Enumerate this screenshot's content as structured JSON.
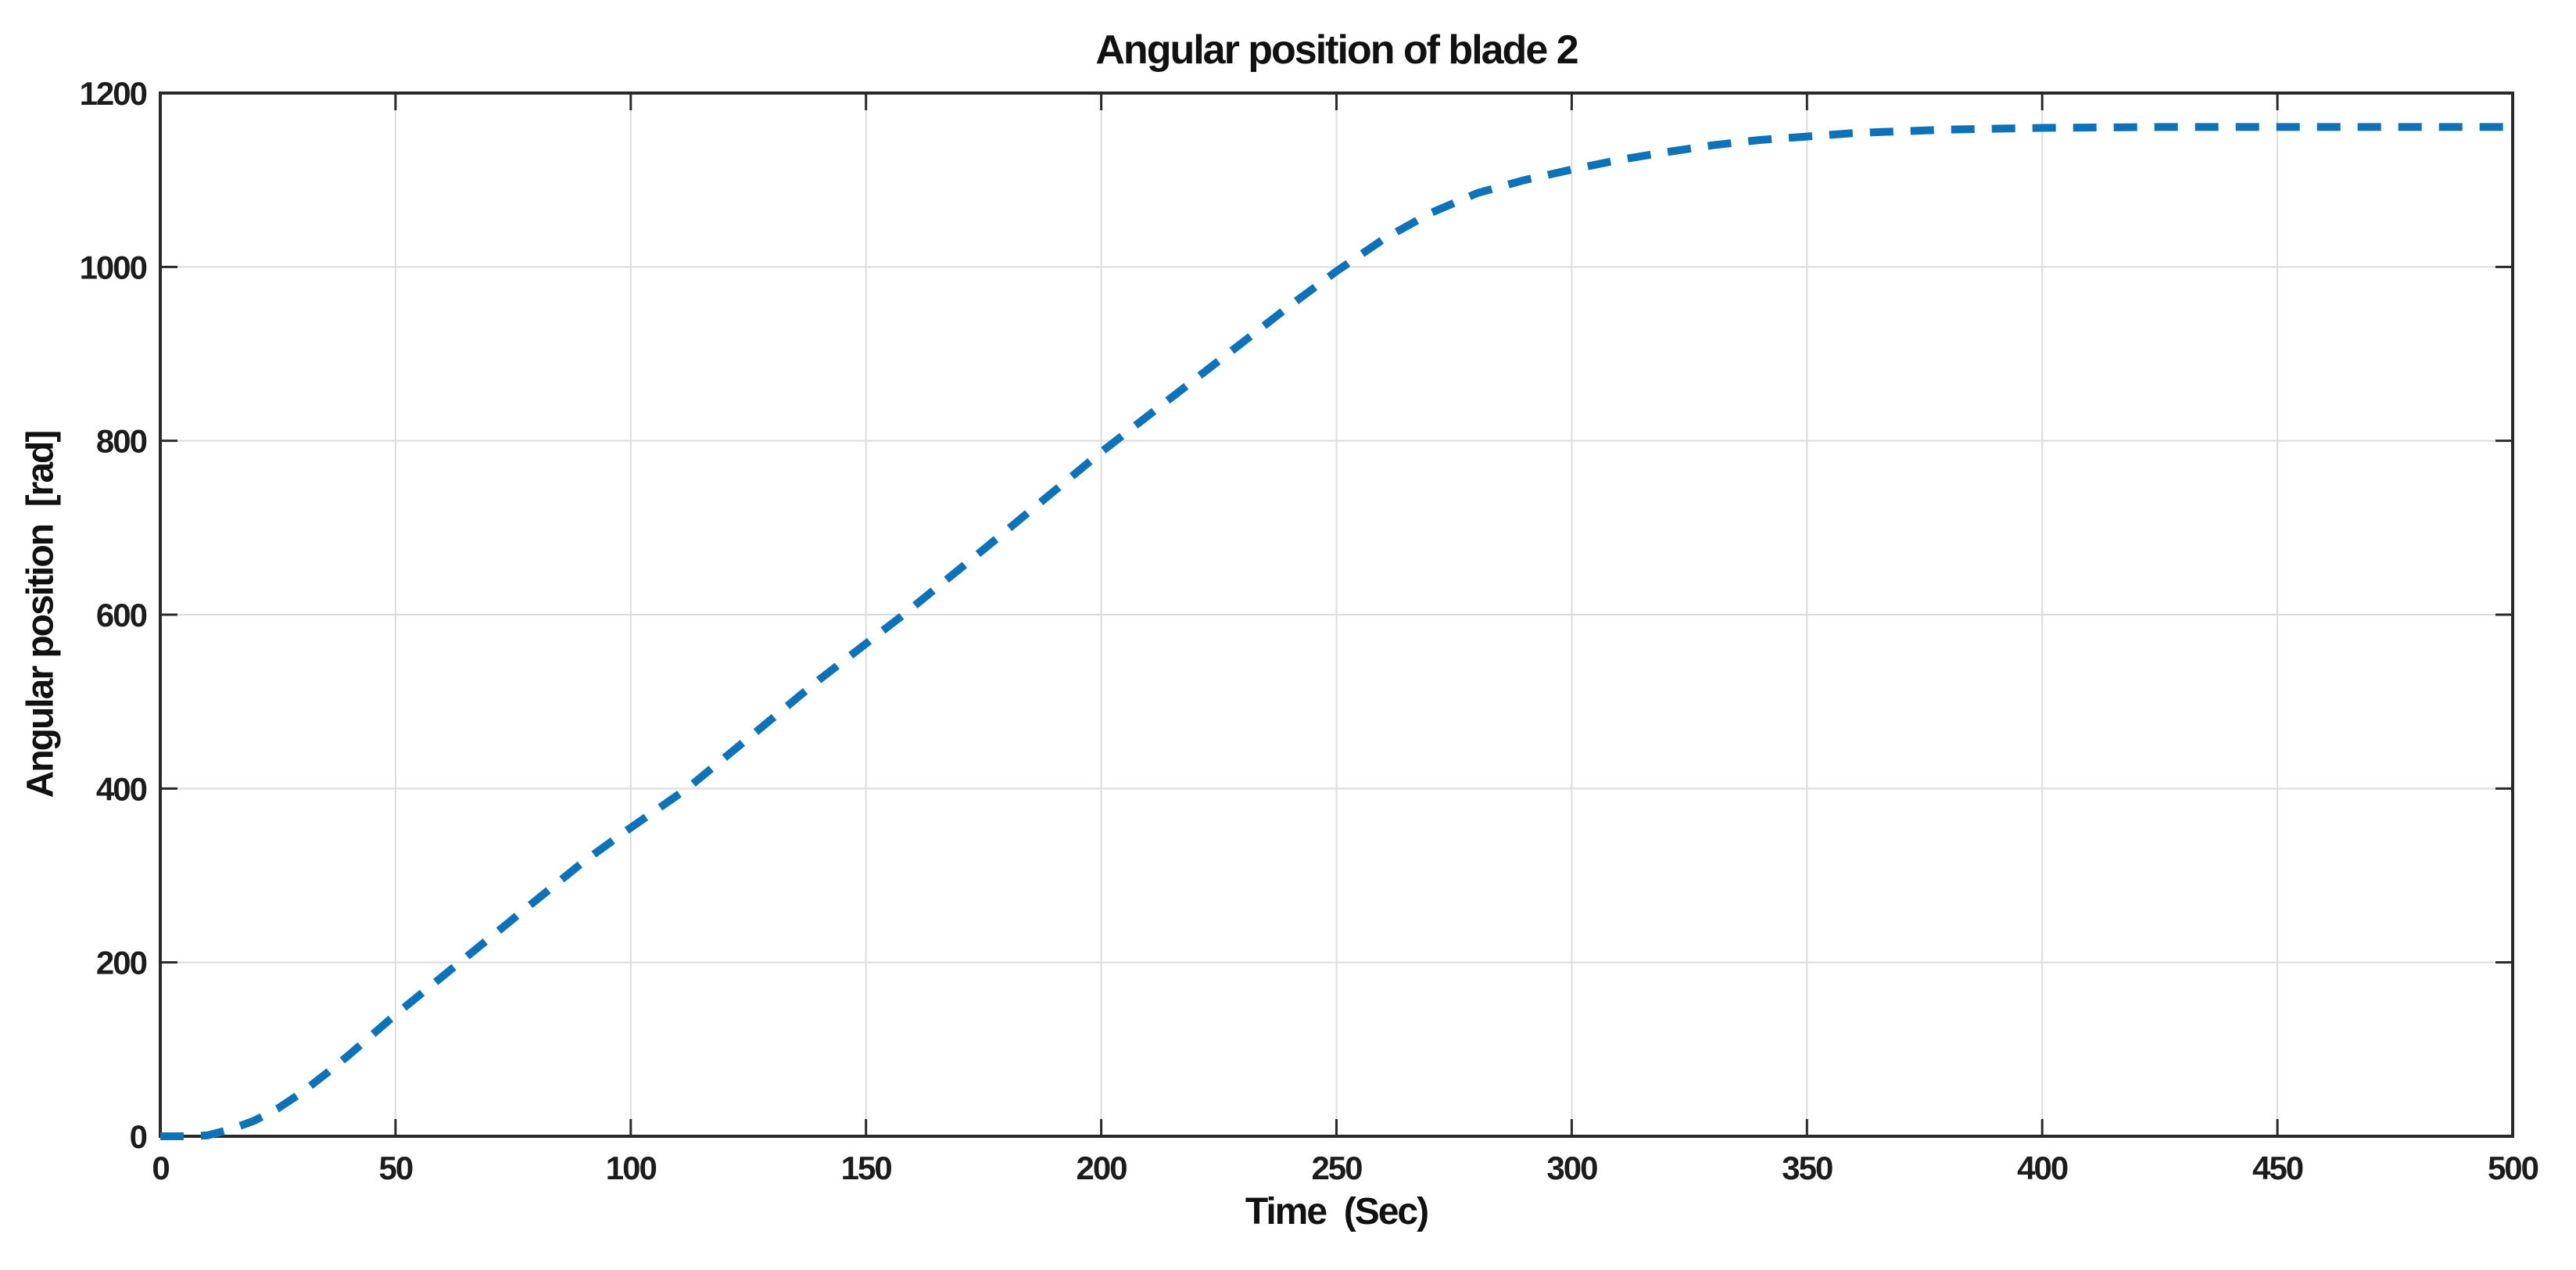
{
  "chart_data": {
    "type": "line",
    "title": "Angular position of blade 2",
    "xlabel": "Time  (Sec)",
    "ylabel": "Angular position  [rad]",
    "xlim": [
      0,
      500
    ],
    "ylim": [
      0,
      1200
    ],
    "xticks": [
      0,
      50,
      100,
      150,
      200,
      250,
      300,
      350,
      400,
      450,
      500
    ],
    "yticks": [
      0,
      200,
      400,
      600,
      800,
      1000,
      1200
    ],
    "grid": true,
    "legend_position": "none",
    "colors": {
      "line": "#0d72b8",
      "grid": "#dcdcdc",
      "axis": "#2a2a2a",
      "tick_text": "#1c1c1c",
      "background": "#ffffff"
    },
    "series": [
      {
        "name": "angular-position-blade-2",
        "line_style": "dashed",
        "line_width": 10,
        "color": "#0d72b8",
        "x": [
          0,
          5,
          10,
          15,
          20,
          25,
          30,
          35,
          40,
          50,
          60,
          70,
          80,
          90,
          100,
          112,
          125,
          140,
          158,
          175,
          200,
          220,
          240,
          250,
          260,
          270,
          280,
          290,
          300,
          310,
          320,
          330,
          340,
          350,
          360,
          380,
          400,
          425,
          450,
          475,
          500
        ],
        "y": [
          0,
          0,
          1,
          8,
          18,
          32,
          50,
          71,
          93,
          140,
          184,
          228,
          272,
          316,
          355,
          400,
          458,
          525,
          600,
          675,
          787,
          871,
          955,
          995,
          1032,
          1062,
          1085,
          1100,
          1112,
          1123,
          1132,
          1140,
          1146,
          1150,
          1154,
          1158,
          1160,
          1161,
          1161,
          1161,
          1161
        ]
      }
    ]
  }
}
